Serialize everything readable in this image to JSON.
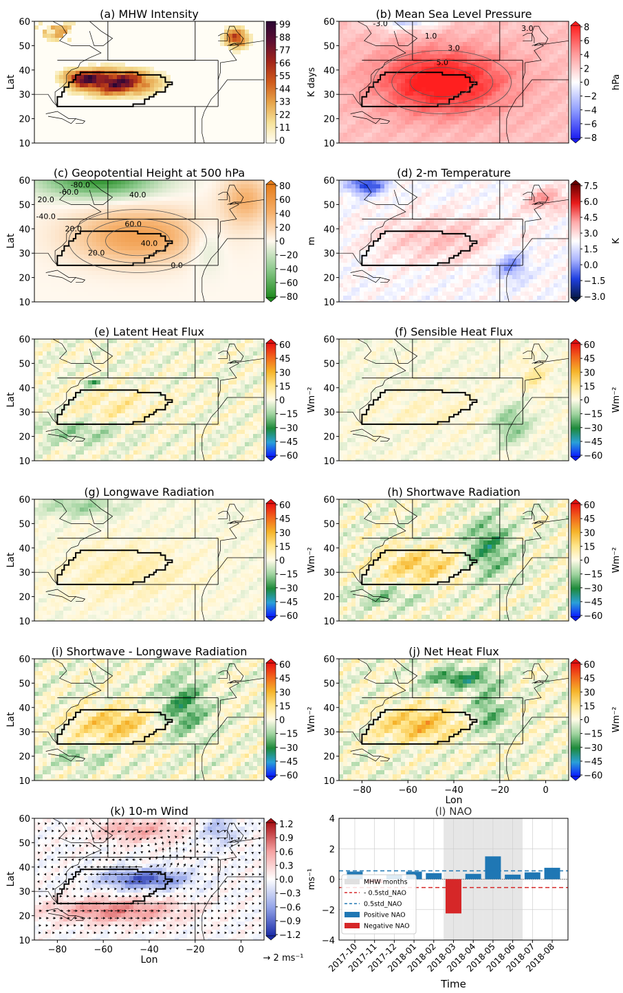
{
  "panels": [
    {
      "title": "(a) MHW Intensity",
      "field": "mhw",
      "cbar_ticks": [
        "99",
        "88",
        "77",
        "66",
        "55",
        "44",
        "33",
        "22",
        "11",
        "0"
      ],
      "cbar_label": "K days",
      "cmap": "mhw",
      "contour_labels": []
    },
    {
      "title": "(b) Mean Sea Level Pressure",
      "field": "mslp",
      "cbar_ticks": [
        "8",
        "6",
        "4",
        "2",
        "0",
        "−2",
        "−4",
        "−6",
        "−8"
      ],
      "cbar_label": "hPa",
      "cmap": "bwr",
      "contour_labels": [
        "-3.0",
        "1.0",
        "3.0",
        "5.0",
        "3.0"
      ]
    },
    {
      "title": "(c) Geopotential Height at 500 hPa",
      "field": "z500",
      "cbar_ticks": [
        "80",
        "60",
        "40",
        "20",
        "0",
        "−20",
        "−40",
        "−60",
        "−80"
      ],
      "cbar_label": "m",
      "cmap": "gorange",
      "contour_labels": [
        "-80.0",
        "-60.0",
        "20.0",
        "40.0",
        "-40.0",
        "20.0",
        "60.0",
        "40.0",
        "20.0",
        "0.0"
      ]
    },
    {
      "title": "(d) 2-m Temperature",
      "field": "t2m",
      "cbar_ticks": [
        "7.5",
        "6.0",
        "4.5",
        "3.0",
        "1.5",
        "0.0",
        "−1.5",
        "−3.0"
      ],
      "cbar_label": "K",
      "cmap": "seismic",
      "contour_labels": []
    },
    {
      "title": "(e) Latent Heat Flux",
      "field": "lhf",
      "cbar_ticks": [
        "60",
        "45",
        "30",
        "15",
        "0",
        "−15",
        "−30",
        "−45",
        "−60"
      ],
      "cbar_label": "Wm⁻²",
      "cmap": "flux",
      "contour_labels": []
    },
    {
      "title": "(f) Sensible Heat Flux",
      "field": "shf",
      "cbar_ticks": [
        "60",
        "45",
        "30",
        "15",
        "0",
        "−15",
        "−30",
        "−45",
        "−60"
      ],
      "cbar_label": "Wm⁻²",
      "cmap": "flux",
      "contour_labels": []
    },
    {
      "title": "(g) Longwave Radiation",
      "field": "lw",
      "cbar_ticks": [
        "60",
        "45",
        "30",
        "15",
        "0",
        "−15",
        "−30",
        "−45",
        "−60"
      ],
      "cbar_label": "Wm⁻²",
      "cmap": "flux",
      "contour_labels": []
    },
    {
      "title": "(h) Shortwave Radiation",
      "field": "sw",
      "cbar_ticks": [
        "60",
        "45",
        "30",
        "15",
        "0",
        "−15",
        "−30",
        "−45",
        "−60"
      ],
      "cbar_label": "Wm⁻²",
      "cmap": "flux",
      "contour_labels": []
    },
    {
      "title": "(i) Shortwave - Longwave Radiation",
      "field": "swlw",
      "cbar_ticks": [
        "60",
        "45",
        "30",
        "15",
        "0",
        "−15",
        "−30",
        "−45",
        "−60"
      ],
      "cbar_label": "Wm⁻²",
      "cmap": "flux",
      "contour_labels": []
    },
    {
      "title": "(j) Net Heat Flux",
      "field": "net",
      "cbar_ticks": [
        "60",
        "45",
        "30",
        "15",
        "0",
        "−15",
        "−30",
        "−45",
        "−60"
      ],
      "cbar_label": "Wm⁻²",
      "cmap": "flux",
      "contour_labels": []
    },
    {
      "title": "(k) 10-m Wind",
      "field": "wind",
      "cbar_ticks": [
        "1.2",
        "0.9",
        "0.6",
        "0.3",
        "0.0",
        "−0.3",
        "−0.6",
        "−0.9",
        "−1.2"
      ],
      "cbar_label": "ms⁻¹",
      "cmap": "rdbu",
      "contour_labels": [],
      "quiver_key": "→ 2 ms⁻¹"
    }
  ],
  "map_axes": {
    "ylabel": "Lat",
    "xlabel": "Lon",
    "lat_ticks": [
      "60",
      "50",
      "40",
      "30",
      "20",
      "10"
    ],
    "lon_ticks": [
      "−80",
      "−60",
      "−40",
      "−20",
      "0"
    ]
  },
  "colors": {
    "mhw": [
      "#fffdf5",
      "#f6e29a",
      "#e6a44a",
      "#cf5b1c",
      "#a2251a",
      "#5e0f33",
      "#2a0733"
    ],
    "bwr": [
      "#1a1cf0",
      "#8e9cff",
      "#ffffff",
      "#ff9a9a",
      "#ff1f1f"
    ],
    "gorange": [
      "#1e8a1e",
      "#8cc98c",
      "#fff8ee",
      "#f6b06b",
      "#e57c1a"
    ],
    "seismic": [
      "#071a4a",
      "#1f3fe0",
      "#aab4ff",
      "#ffffff",
      "#ffaaaa",
      "#e81b1b",
      "#6b0000"
    ],
    "flux": [
      "#0a1cff",
      "#2aa0d8",
      "#1e8a3a",
      "#9fd39f",
      "#fffbe8",
      "#ffe58a",
      "#f5b42a",
      "#f2661c",
      "#e81010"
    ],
    "rdbu": [
      "#1a2ba8",
      "#92a3e8",
      "#ffffff",
      "#f5a0a0",
      "#a80f14"
    ]
  },
  "chart_data": [
    {
      "type": "bar",
      "title": "(l) NAO",
      "xlabel": "Time",
      "ylabel": "",
      "categories": [
        "2017-10",
        "2017-11",
        "2017-12",
        "2018-01",
        "2018-02",
        "2018-03",
        "2018-04",
        "2018-05",
        "2018-06",
        "2018-07",
        "2018-08"
      ],
      "values": [
        0.5,
        -0.25,
        0.3,
        0.5,
        0.4,
        -2.25,
        0.35,
        1.5,
        0.3,
        0.45,
        0.75
      ],
      "ylim": [
        -4,
        4
      ],
      "yticks": [
        "4",
        "2",
        "0",
        "−2",
        "−4"
      ],
      "mhw_months_shaded": [
        "2018-03",
        "2018-04",
        "2018-05",
        "2018-06"
      ],
      "threshold_positive": 0.55,
      "threshold_negative": -0.55,
      "grid": true,
      "legend_position": "lower-left",
      "legend": [
        "MHW months",
        "- 0.5std_NAO",
        "0.5std_NAO",
        "Positive NAO",
        "Negative NAO"
      ],
      "positive_color": "#1f77b4",
      "negative_color": "#d62728"
    }
  ]
}
